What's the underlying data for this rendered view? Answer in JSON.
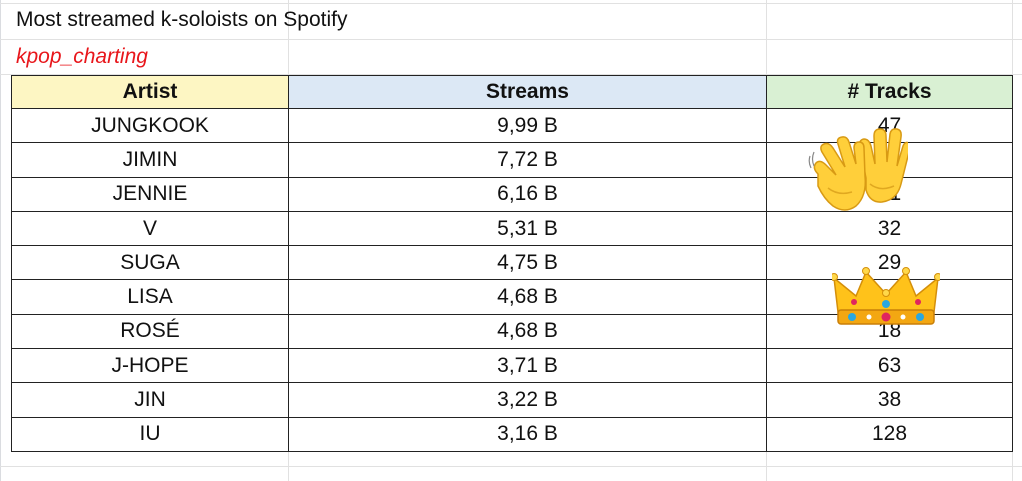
{
  "title": "Most streamed k-soloists on Spotify",
  "subtitle": "kpop_charting",
  "table": {
    "headers": [
      "Artist",
      "Streams",
      "# Tracks"
    ],
    "rows": [
      {
        "artist": "JUNGKOOK",
        "streams": "9,99 B",
        "tracks": "47"
      },
      {
        "artist": "JIMIN",
        "streams": "7,72 B",
        "tracks": ""
      },
      {
        "artist": "JENNIE",
        "streams": "6,16 B",
        "tracks": "31"
      },
      {
        "artist": "V",
        "streams": "5,31 B",
        "tracks": "32"
      },
      {
        "artist": "SUGA",
        "streams": "4,75 B",
        "tracks": "29"
      },
      {
        "artist": "LISA",
        "streams": "4,68 B",
        "tracks": ""
      },
      {
        "artist": "ROSÉ",
        "streams": "4,68 B",
        "tracks": "18"
      },
      {
        "artist": "J-HOPE",
        "streams": "3,71 B",
        "tracks": "63"
      },
      {
        "artist": "JIN",
        "streams": "3,22 B",
        "tracks": "38"
      },
      {
        "artist": "IU",
        "streams": "3,16 B",
        "tracks": "128"
      }
    ]
  },
  "decorations": {
    "emoji_1": "waving-hands-icon",
    "emoji_2": "crown-icon"
  },
  "colors": {
    "subtitle": "#e8161b",
    "artist_header_bg": "#fdf6c3",
    "streams_header_bg": "#dce8f5",
    "tracks_header_bg": "#d9f0d3"
  }
}
